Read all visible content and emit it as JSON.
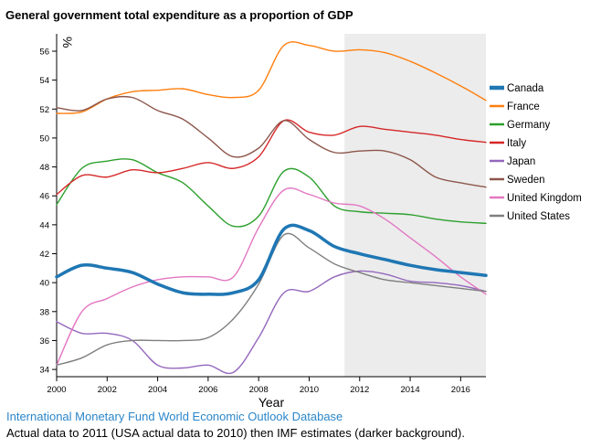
{
  "title": "General government total expenditure as a proportion of GDP",
  "source_link": "International Monetary Fund World Economic Outlook Database",
  "caption": "Actual data to 2011 (USA actual data to 2010) then IMF estimates (darker background).",
  "colors": {
    "link": "#2b86c9",
    "estimate_shade": "#ececec"
  },
  "chart_data": {
    "type": "line",
    "xlabel": "Year",
    "ylabel": "%",
    "xlim": [
      2000,
      2017
    ],
    "ylim": [
      33.5,
      57.2
    ],
    "x_ticks": [
      2000,
      2002,
      2004,
      2006,
      2008,
      2010,
      2012,
      2014,
      2016
    ],
    "y_ticks": [
      34,
      36,
      38,
      40,
      42,
      44,
      46,
      48,
      50,
      52,
      54,
      56
    ],
    "estimate_region": [
      2011.4,
      2017
    ],
    "grid": false,
    "legend_position": "right",
    "x": [
      2000,
      2001,
      2002,
      2003,
      2004,
      2005,
      2006,
      2007,
      2008,
      2009,
      2010,
      2011,
      2012,
      2013,
      2014,
      2015,
      2016,
      2017
    ],
    "series": [
      {
        "name": "Canada",
        "color": "#1f77b4",
        "highlight": true,
        "values": [
          40.4,
          41.2,
          41.0,
          40.7,
          39.9,
          39.3,
          39.2,
          39.3,
          40.2,
          43.7,
          43.6,
          42.5,
          42.0,
          41.6,
          41.2,
          40.9,
          40.7,
          40.5
        ]
      },
      {
        "name": "France",
        "color": "#ff7f0e",
        "values": [
          51.7,
          51.8,
          52.7,
          53.2,
          53.3,
          53.4,
          53.0,
          52.8,
          53.3,
          56.4,
          56.4,
          56.0,
          56.1,
          55.9,
          55.3,
          54.5,
          53.6,
          52.6
        ]
      },
      {
        "name": "Germany",
        "color": "#2ca02c",
        "values": [
          45.4,
          47.9,
          48.4,
          48.5,
          47.6,
          46.9,
          45.3,
          43.9,
          44.6,
          47.7,
          47.3,
          45.3,
          44.9,
          44.8,
          44.7,
          44.4,
          44.2,
          44.1
        ]
      },
      {
        "name": "Italy",
        "color": "#d62728",
        "values": [
          46.1,
          47.4,
          47.3,
          47.8,
          47.6,
          47.9,
          48.3,
          47.9,
          48.7,
          51.2,
          50.4,
          50.2,
          50.8,
          50.6,
          50.4,
          50.2,
          49.9,
          49.7
        ]
      },
      {
        "name": "Japan",
        "color": "#9467bd",
        "values": [
          37.3,
          36.5,
          36.5,
          36.0,
          34.3,
          34.1,
          34.3,
          33.8,
          36.2,
          39.3,
          39.4,
          40.4,
          40.8,
          40.6,
          40.1,
          40.0,
          39.8,
          39.4
        ]
      },
      {
        "name": "Sweden",
        "color": "#8c564b",
        "values": [
          52.1,
          51.9,
          52.7,
          52.8,
          51.9,
          51.3,
          50.0,
          48.7,
          49.3,
          51.2,
          49.9,
          49.0,
          49.1,
          49.1,
          48.5,
          47.3,
          46.9,
          46.6
        ]
      },
      {
        "name": "United Kingdom",
        "color": "#e377c2",
        "values": [
          34.3,
          38.0,
          38.9,
          39.7,
          40.2,
          40.4,
          40.4,
          40.4,
          43.8,
          46.4,
          46.1,
          45.5,
          45.3,
          44.4,
          43.1,
          41.8,
          40.4,
          39.2
        ]
      },
      {
        "name": "United States",
        "color": "#7f7f7f",
        "values": [
          34.3,
          34.8,
          35.7,
          36.0,
          36.0,
          36.0,
          36.2,
          37.5,
          39.9,
          43.3,
          42.4,
          41.3,
          40.7,
          40.2,
          40.0,
          39.8,
          39.6,
          39.4
        ]
      }
    ]
  }
}
